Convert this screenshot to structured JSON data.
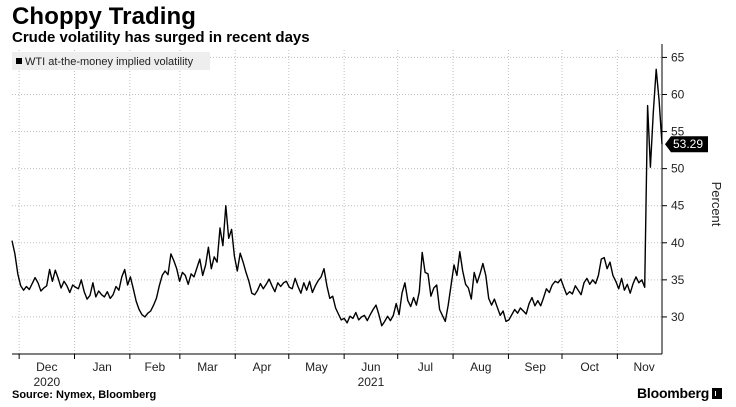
{
  "header": {
    "title": "Choppy Trading",
    "subtitle": "Crude volatility has surged in recent days"
  },
  "footer": {
    "source": "Source: Nymex, Bloomberg",
    "brand": "Bloomberg"
  },
  "colors": {
    "line": "#000000",
    "grid": "#bfbfbf",
    "callout_bg": "#000000",
    "legend_bg": "#eeeeee"
  },
  "chart_data": {
    "type": "line",
    "title": "Choppy Trading",
    "subtitle": "Crude volatility has surged in recent days",
    "xlabel": "",
    "ylabel": "Percent",
    "y_axis_side": "right",
    "ylim": [
      25,
      66
    ],
    "y_ticks": [
      30,
      35,
      40,
      45,
      50,
      55,
      60,
      65
    ],
    "grid": "dotted",
    "legend": {
      "position": "top-left",
      "entries": [
        "WTI at-the-money implied volatility"
      ]
    },
    "x_tick_labels": [
      "Dec",
      "Jan",
      "Feb",
      "Mar",
      "Apr",
      "May",
      "Jun",
      "Jul",
      "Aug",
      "Sep",
      "Oct",
      "Nov"
    ],
    "x_year_labels": [
      {
        "at": "Dec",
        "label": "2020"
      },
      {
        "at": "Jun",
        "label": "2021"
      }
    ],
    "last_value_label": "53.29",
    "series": [
      {
        "name": "WTI at-the-money implied volatility",
        "x_start": "2020-11-27",
        "x_end": "2021-11-26",
        "values": [
          40.3,
          38.5,
          35.8,
          34.2,
          33.6,
          34.1,
          33.7,
          34.5,
          35.3,
          34.6,
          33.5,
          33.9,
          34.2,
          36.4,
          34.8,
          36.3,
          35.2,
          33.9,
          34.8,
          34.2,
          33.3,
          34.3,
          34.0,
          33.8,
          35.0,
          33.4,
          32.4,
          32.9,
          34.6,
          32.7,
          33.5,
          33.0,
          32.7,
          33.4,
          32.5,
          33.0,
          34.1,
          33.6,
          35.4,
          36.4,
          34.3,
          35.4,
          33.8,
          32.1,
          31.0,
          30.3,
          30.0,
          30.5,
          30.8,
          31.6,
          32.5,
          34.2,
          35.6,
          36.2,
          35.7,
          38.5,
          37.6,
          36.5,
          34.8,
          36.0,
          35.6,
          34.4,
          35.8,
          35.4,
          36.6,
          37.8,
          35.6,
          37.0,
          39.4,
          36.5,
          38.1,
          37.4,
          42.0,
          39.6,
          45.0,
          40.6,
          41.8,
          38.2,
          36.2,
          38.6,
          37.4,
          36.0,
          34.8,
          33.2,
          33.0,
          33.6,
          34.5,
          33.8,
          34.4,
          35.1,
          34.2,
          33.4,
          34.6,
          34.1,
          34.6,
          34.8,
          34.0,
          33.8,
          35.2,
          34.1,
          33.2,
          34.6,
          33.6,
          34.8,
          33.3,
          34.2,
          34.9,
          35.4,
          36.5,
          34.2,
          32.5,
          32.8,
          31.2,
          30.4,
          29.6,
          29.8,
          29.2,
          30.1,
          29.8,
          30.6,
          29.6,
          30.0,
          30.2,
          29.5,
          30.3,
          31.0,
          31.6,
          30.3,
          28.8,
          29.4,
          30.1,
          29.5,
          30.2,
          31.8,
          30.3,
          33.2,
          34.6,
          32.2,
          31.4,
          32.6,
          31.6,
          33.4,
          38.7,
          36.0,
          35.8,
          32.8,
          33.9,
          34.3,
          31.0,
          30.2,
          29.4,
          31.6,
          34.3,
          37.0,
          35.6,
          38.8,
          36.2,
          34.4,
          33.9,
          32.4,
          36.0,
          34.6,
          35.8,
          37.2,
          35.6,
          32.5,
          31.6,
          32.4,
          31.3,
          30.2,
          30.8,
          29.4,
          29.6,
          30.3,
          31.0,
          30.5,
          31.2,
          30.8,
          30.4,
          31.8,
          32.6,
          31.5,
          32.2,
          31.5,
          32.6,
          33.8,
          33.3,
          34.3,
          34.8,
          34.6,
          35.1,
          34.0,
          33.0,
          33.4,
          33.1,
          34.2,
          33.6,
          33.0,
          34.6,
          35.2,
          34.4,
          35.0,
          34.5,
          35.6,
          37.8,
          38.0,
          36.5,
          37.4,
          35.6,
          34.8,
          33.8,
          35.2,
          33.6,
          34.4,
          33.2,
          34.5,
          35.4,
          34.6,
          35.0,
          34.0,
          58.5,
          50.2,
          57.6,
          63.4,
          59.2,
          53.29
        ]
      }
    ]
  }
}
